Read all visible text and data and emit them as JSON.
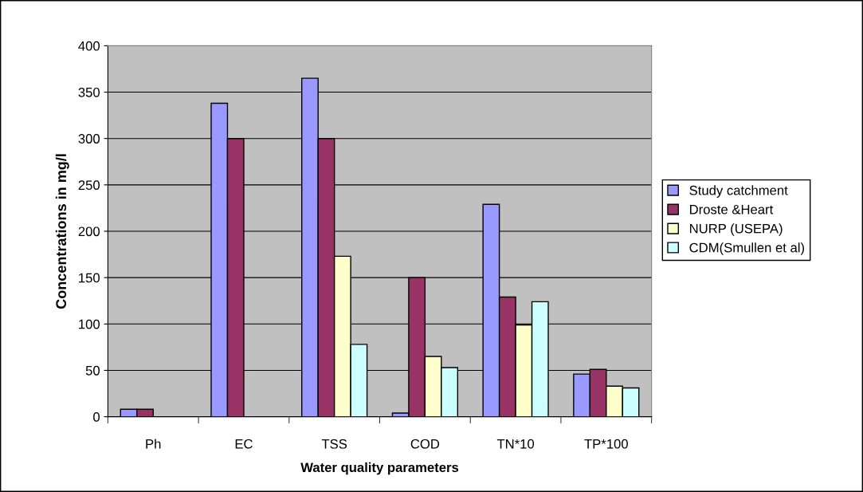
{
  "chart_data": {
    "type": "bar",
    "xlabel": "Water quality parameters",
    "ylabel": "Concentrations in mg/l",
    "categories": [
      "Ph",
      "EC",
      "TSS",
      "COD",
      "TN*10",
      "TP*100"
    ],
    "series": [
      {
        "name": "Study catchment",
        "color": "#9999ff",
        "values": [
          8,
          338,
          365,
          4,
          229,
          46
        ]
      },
      {
        "name": "Droste &Heart",
        "color": "#993366",
        "values": [
          8,
          300,
          300,
          150,
          129,
          51
        ]
      },
      {
        "name": "NURP (USEPA)",
        "color": "#ffffcc",
        "values": [
          null,
          null,
          173,
          65,
          99,
          33
        ]
      },
      {
        "name": "CDM(Smullen et al)",
        "color": "#ccffff",
        "values": [
          null,
          null,
          78,
          53,
          124,
          31
        ]
      }
    ],
    "ylim": [
      0,
      400
    ],
    "yticks": [
      0,
      50,
      100,
      150,
      200,
      250,
      300,
      350,
      400
    ],
    "grid": "y",
    "legend": "right"
  }
}
